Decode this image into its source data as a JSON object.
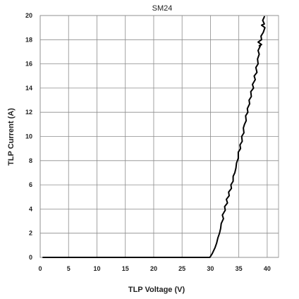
{
  "chart_data": {
    "type": "line",
    "title": "SM24",
    "xlabel": "TLP Voltage (V)",
    "ylabel": "TLP Current (A)",
    "xlim": [
      0,
      42
    ],
    "ylim": [
      0,
      20
    ],
    "xticks": [
      0,
      5,
      10,
      15,
      20,
      25,
      30,
      35,
      40
    ],
    "yticks": [
      0,
      2,
      4,
      6,
      8,
      10,
      12,
      14,
      16,
      18,
      20
    ],
    "grid": true,
    "legend": "none",
    "series": [
      {
        "color": "#000000",
        "x": [
          0.5,
          5,
          10,
          15,
          20,
          25,
          29.9,
          30.3,
          30.8,
          31.1,
          31.3,
          31.6,
          31.8,
          31.9,
          32.3,
          32.1,
          32.6,
          32.5,
          33.0,
          32.8,
          33.3,
          33.2,
          33.7,
          33.6,
          34.0,
          34.0,
          34.3,
          34.5,
          34.6,
          34.9,
          34.9,
          35.3,
          35.2,
          35.6,
          35.5,
          35.9,
          35.8,
          36.0,
          36.3,
          36.2,
          36.6,
          36.5,
          36.9,
          36.8,
          37.2,
          37.1,
          37.6,
          37.4,
          37.9,
          37.7,
          38.2,
          38.0,
          38.4,
          38.3,
          38.6,
          38.4,
          38.8,
          38.6,
          39.0,
          38.4,
          39.0,
          38.9,
          39.3,
          39.6,
          39.0,
          39.5,
          39.2,
          39.5
        ],
        "y": [
          0,
          0,
          0,
          0,
          0,
          0,
          0,
          0.3,
          0.8,
          1.2,
          1.6,
          2.0,
          2.4,
          2.8,
          3.2,
          3.5,
          3.9,
          4.2,
          4.5,
          4.8,
          5.1,
          5.4,
          5.7,
          6.0,
          6.3,
          6.7,
          7.0,
          7.4,
          7.8,
          8.2,
          8.7,
          9.0,
          9.3,
          9.6,
          10.0,
          10.3,
          10.7,
          11.0,
          11.3,
          11.7,
          12.0,
          12.3,
          12.7,
          13.0,
          13.3,
          13.7,
          14.0,
          14.3,
          14.7,
          15.0,
          15.3,
          15.7,
          16.0,
          16.4,
          16.8,
          17.1,
          17.5,
          17.5,
          17.6,
          17.8,
          18.0,
          18.3,
          18.6,
          19.0,
          19.2,
          19.3,
          19.6,
          19.9
        ]
      }
    ]
  }
}
